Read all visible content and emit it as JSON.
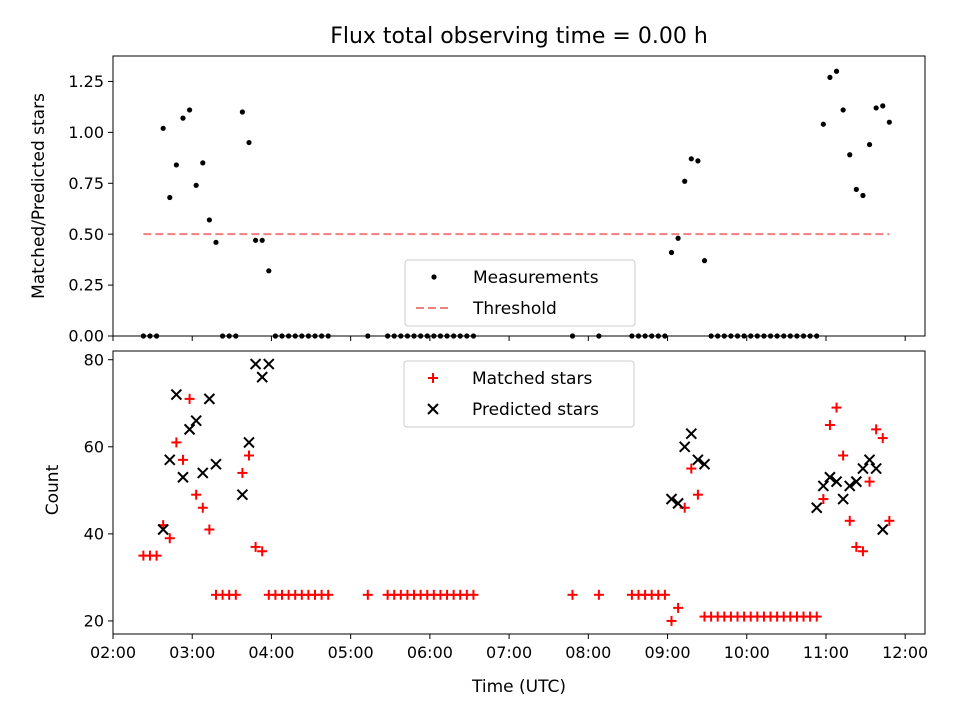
{
  "chart_data": [
    {
      "type": "scatter",
      "title": "Flux total observing time = 0.00 h",
      "xlabel": "",
      "ylabel": "Matched/Predicted stars",
      "xlim": [
        "02:00",
        "12:15"
      ],
      "ylim": [
        0,
        1.375
      ],
      "xticks": [
        "02:00",
        "03:00",
        "04:00",
        "05:00",
        "06:00",
        "07:00",
        "08:00",
        "09:00",
        "10:00",
        "11:00",
        "12:00"
      ],
      "yticks": [
        "0.00",
        "0.25",
        "0.50",
        "0.75",
        "1.00",
        "1.25"
      ],
      "legend_position": "lower-center",
      "series": [
        {
          "name": "Measurements",
          "marker": "dot",
          "color": "#000000",
          "x": [
            "02:23",
            "02:28",
            "02:33",
            "02:38",
            "02:43",
            "02:48",
            "02:53",
            "02:58",
            "03:03",
            "03:08",
            "03:13",
            "03:18",
            "03:23",
            "03:28",
            "03:33",
            "03:38",
            "03:43",
            "03:48",
            "03:53",
            "03:58",
            "04:03",
            "04:08",
            "04:13",
            "04:18",
            "04:23",
            "04:28",
            "04:33",
            "04:38",
            "04:43",
            "05:13",
            "05:28",
            "05:33",
            "05:38",
            "05:43",
            "05:48",
            "05:53",
            "05:58",
            "06:03",
            "06:08",
            "06:13",
            "06:18",
            "06:23",
            "06:28",
            "06:33",
            "07:48",
            "08:08",
            "08:33",
            "08:38",
            "08:43",
            "08:48",
            "08:53",
            "08:58",
            "09:03",
            "09:08",
            "09:13",
            "09:18",
            "09:23",
            "09:28",
            "09:33",
            "09:38",
            "09:43",
            "09:48",
            "09:53",
            "09:58",
            "10:03",
            "10:08",
            "10:13",
            "10:18",
            "10:23",
            "10:28",
            "10:33",
            "10:38",
            "10:43",
            "10:48",
            "10:53",
            "10:58",
            "11:03",
            "11:08",
            "11:13",
            "11:18",
            "11:23",
            "11:28",
            "11:33",
            "11:38",
            "11:43",
            "11:48"
          ],
          "y": [
            0,
            0,
            0,
            1.02,
            0.68,
            0.84,
            1.07,
            1.11,
            0.74,
            0.85,
            0.57,
            0.46,
            0,
            0,
            0,
            1.1,
            0.95,
            0.47,
            0.47,
            0.32,
            0,
            0,
            0,
            0,
            0,
            0,
            0,
            0,
            0,
            0,
            0,
            0,
            0,
            0,
            0,
            0,
            0,
            0,
            0,
            0,
            0,
            0,
            0,
            0,
            0,
            0,
            0,
            0,
            0,
            0,
            0,
            0,
            0.41,
            0.48,
            0.76,
            0.87,
            0.86,
            0.37,
            0,
            0,
            0,
            0,
            0,
            0,
            0,
            0,
            0,
            0,
            0,
            0,
            0,
            0,
            0,
            0,
            0,
            1.04,
            1.27,
            1.3,
            1.11,
            0.89,
            0.72,
            0.69,
            0.94,
            1.12,
            1.13,
            1.05
          ]
        },
        {
          "name": "Threshold",
          "style": "dashed",
          "color": "#f08080",
          "x": [
            "02:23",
            "11:48"
          ],
          "y": [
            0.5,
            0.5
          ]
        }
      ]
    },
    {
      "type": "scatter",
      "title": "",
      "xlabel": "Time (UTC)",
      "ylabel": "Count",
      "xlim": [
        "02:00",
        "12:15"
      ],
      "ylim": [
        17,
        82
      ],
      "xticks": [
        "02:00",
        "03:00",
        "04:00",
        "05:00",
        "06:00",
        "07:00",
        "08:00",
        "09:00",
        "10:00",
        "11:00",
        "12:00"
      ],
      "yticks": [
        "20",
        "40",
        "60",
        "80"
      ],
      "legend_position": "upper-center",
      "series": [
        {
          "name": "Matched stars",
          "marker": "plus",
          "color": "#ff0000",
          "x": [
            "02:23",
            "02:28",
            "02:33",
            "02:38",
            "02:43",
            "02:48",
            "02:53",
            "02:58",
            "03:03",
            "03:08",
            "03:13",
            "03:18",
            "03:23",
            "03:28",
            "03:33",
            "03:38",
            "03:43",
            "03:48",
            "03:53",
            "03:58",
            "04:03",
            "04:08",
            "04:13",
            "04:18",
            "04:23",
            "04:28",
            "04:33",
            "04:38",
            "04:43",
            "05:13",
            "05:28",
            "05:33",
            "05:38",
            "05:43",
            "05:48",
            "05:53",
            "05:58",
            "06:03",
            "06:08",
            "06:13",
            "06:18",
            "06:23",
            "06:28",
            "06:33",
            "07:48",
            "08:08",
            "08:33",
            "08:38",
            "08:43",
            "08:48",
            "08:53",
            "08:58",
            "09:03",
            "09:08",
            "09:13",
            "09:18",
            "09:23",
            "09:28",
            "09:33",
            "09:38",
            "09:43",
            "09:48",
            "09:53",
            "09:58",
            "10:03",
            "10:08",
            "10:13",
            "10:18",
            "10:23",
            "10:28",
            "10:33",
            "10:38",
            "10:43",
            "10:48",
            "10:53",
            "10:58",
            "11:03",
            "11:08",
            "11:13",
            "11:18",
            "11:23",
            "11:28",
            "11:33",
            "11:38",
            "11:43",
            "11:48"
          ],
          "y": [
            35,
            35,
            35,
            42,
            39,
            61,
            57,
            71,
            49,
            46,
            41,
            26,
            26,
            26,
            26,
            54,
            58,
            37,
            36,
            26,
            26,
            26,
            26,
            26,
            26,
            26,
            26,
            26,
            26,
            26,
            26,
            26,
            26,
            26,
            26,
            26,
            26,
            26,
            26,
            26,
            26,
            26,
            26,
            26,
            26,
            26,
            26,
            26,
            26,
            26,
            26,
            26,
            20,
            23,
            46,
            55,
            49,
            21,
            21,
            21,
            21,
            21,
            21,
            21,
            21,
            21,
            21,
            21,
            21,
            21,
            21,
            21,
            21,
            21,
            21,
            48,
            65,
            69,
            58,
            43,
            37,
            36,
            52,
            64,
            62,
            43
          ]
        },
        {
          "name": "Predicted stars",
          "marker": "x",
          "color": "#000000",
          "x": [
            "02:38",
            "02:43",
            "02:48",
            "02:53",
            "02:58",
            "03:03",
            "03:08",
            "03:13",
            "03:18",
            "03:38",
            "03:43",
            "03:48",
            "03:53",
            "03:58",
            "09:03",
            "09:08",
            "09:13",
            "09:18",
            "09:23",
            "09:28",
            "10:53",
            "10:58",
            "11:03",
            "11:08",
            "11:13",
            "11:18",
            "11:23",
            "11:28",
            "11:33",
            "11:38",
            "11:43"
          ],
          "y": [
            41,
            57,
            72,
            53,
            64,
            66,
            54,
            71,
            56,
            49,
            61,
            79,
            76,
            79,
            48,
            47,
            60,
            63,
            57,
            56,
            46,
            51,
            53,
            52,
            48,
            51,
            52,
            55,
            57,
            55,
            41
          ]
        }
      ]
    }
  ]
}
